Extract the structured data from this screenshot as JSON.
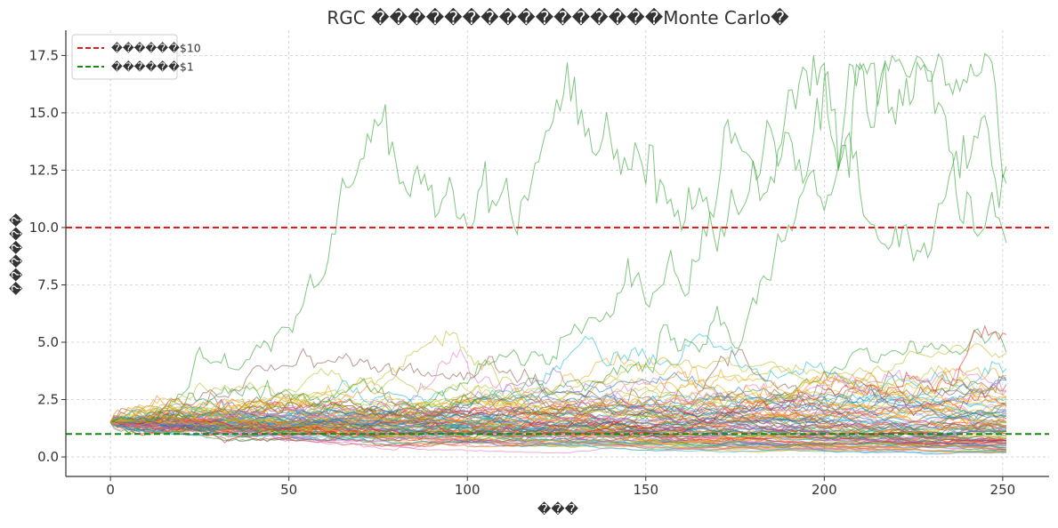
{
  "chart_data": {
    "type": "line",
    "title": "RGC ����������������Monte Carlo�",
    "xlabel": "���",
    "ylabel": "������",
    "xlim": [
      -12.5,
      263
    ],
    "ylim": [
      -0.85,
      18.6
    ],
    "xticks": [
      0,
      50,
      100,
      150,
      200,
      250
    ],
    "yticks": [
      0.0,
      2.5,
      5.0,
      7.5,
      10.0,
      12.5,
      15.0,
      17.5
    ],
    "ytick_labels": [
      "0.0",
      "2.5",
      "5.0",
      "7.5",
      "10.0",
      "12.5",
      "15.0",
      "17.5"
    ],
    "grid": true,
    "legend_position": "top-left",
    "reference_lines": [
      {
        "name": "������$10",
        "y": 10,
        "color": "#e41a1c",
        "style": "dashed"
      },
      {
        "name": "������$1",
        "y": 1,
        "color": "#138a13",
        "style": "dashed"
      }
    ],
    "simulation": {
      "num_paths": 100,
      "start_value": 1.5,
      "days": 251,
      "palette": [
        "#1f77b4",
        "#ff7f0e",
        "#2ca02c",
        "#d62728",
        "#9467bd",
        "#8c564b",
        "#e377c2",
        "#17becf",
        "#bcbd22",
        "#f0a30a"
      ]
    }
  }
}
